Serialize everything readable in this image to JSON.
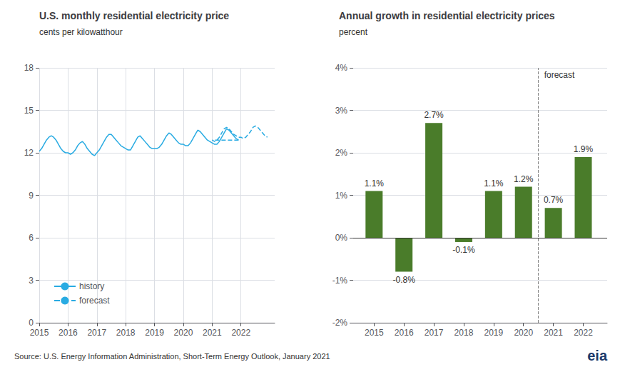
{
  "chart_data": [
    {
      "type": "line",
      "title": "U.S. monthly residential electricity price",
      "subtitle": "cents per kilowatthour",
      "xlim": [
        2015.0,
        2023.17
      ],
      "xticks": [
        2015,
        2016,
        2017,
        2018,
        2019,
        2020,
        2021,
        2022
      ],
      "ylim": [
        0,
        18
      ],
      "yticks": [
        0,
        3,
        6,
        9,
        12,
        15,
        18
      ],
      "grid": true,
      "legend": "lower left",
      "series": [
        {
          "name": "history",
          "color": "#29ABE2",
          "line_style": "solid",
          "x": [
            2015,
            2015.0833333333333,
            2015.1666666666667,
            2015.25,
            2015.3333333333333,
            2015.4166666666667,
            2015.5,
            2015.5833333333333,
            2015.6666666666667,
            2015.75,
            2015.8333333333333,
            2015.9166666666667,
            2016,
            2016.0833333333333,
            2016.1666666666667,
            2016.25,
            2016.3333333333333,
            2016.4166666666667,
            2016.5,
            2016.5833333333333,
            2016.6666666666667,
            2016.75,
            2016.8333333333333,
            2016.9166666666667,
            2017,
            2017.0833333333333,
            2017.1666666666667,
            2017.25,
            2017.3333333333333,
            2017.4166666666667,
            2017.5,
            2017.5833333333333,
            2017.6666666666667,
            2017.75,
            2017.8333333333333,
            2017.9166666666667,
            2018,
            2018.0833333333333,
            2018.1666666666667,
            2018.25,
            2018.3333333333333,
            2018.4166666666667,
            2018.5,
            2018.5833333333333,
            2018.6666666666667,
            2018.75,
            2018.8333333333333,
            2018.9166666666667,
            2019,
            2019.0833333333333,
            2019.1666666666667,
            2019.25,
            2019.3333333333333,
            2019.4166666666667,
            2019.5,
            2019.5833333333333,
            2019.6666666666667,
            2019.75,
            2019.8333333333333,
            2019.9166666666667,
            2020,
            2020.0833333333333,
            2020.1666666666667,
            2020.25,
            2020.3333333333333,
            2020.4166666666667,
            2020.5,
            2020.5833333333333,
            2020.6666666666667,
            2020.75,
            2020.8333333333333,
            2020.9166666666667,
            2021,
            2021.0833333333333,
            2021.1666666666667,
            2021.25,
            2021.3333333333333,
            2021.4166666666667,
            2021.5,
            2021.5833333333333,
            2021.6666666666667,
            2021.75,
            2021.8333333333333,
            2021.9166666666667
          ],
          "values": [
            12.1,
            12.3,
            12.6,
            12.9,
            13.1,
            13.2,
            13.1,
            12.9,
            12.6,
            12.3,
            12.1,
            12.0,
            12.0,
            11.9,
            12.0,
            12.2,
            12.5,
            12.7,
            12.8,
            12.6,
            12.3,
            12.1,
            11.9,
            11.8,
            12.0,
            12.2,
            12.5,
            12.8,
            13.1,
            13.3,
            13.3,
            13.1,
            12.9,
            12.7,
            12.5,
            12.4,
            12.3,
            12.2,
            12.2,
            12.5,
            12.8,
            13.1,
            13.2,
            13.0,
            12.8,
            12.6,
            12.4,
            12.3,
            12.3,
            12.3,
            12.4,
            12.6,
            12.9,
            13.2,
            13.4,
            13.3,
            13.1,
            12.9,
            12.7,
            12.6,
            12.6,
            12.5,
            12.5,
            12.7,
            13.0,
            13.3,
            13.6,
            13.5,
            13.3,
            13.1,
            12.9,
            12.8,
            12.7,
            12.6,
            12.6,
            12.8,
            13.1,
            13.4,
            13.7,
            13.6,
            13.4,
            13.2,
            13.0,
            12.9
          ]
        },
        {
          "name": "forecast",
          "color": "#29ABE2",
          "line_style": "dashed",
          "x": [
            2021.9166666666667,
            2021,
            2021.0833333333333,
            2021.1666666666667,
            2021.25,
            2021.3333333333333,
            2021.4166666666667,
            2021.5,
            2021.5833333333333,
            2021.6666666666667,
            2021.75,
            2021.8333333333333,
            2021.9166666666667,
            2022,
            2022.0833333333333,
            2022.1666666666667,
            2022.25,
            2022.3333333333333,
            2022.4166666666667,
            2022.5,
            2022.5833333333333,
            2022.6666666666667,
            2022.75,
            2022.8333333333333,
            2022.9166666666667
          ],
          "values": [
            12.9,
            12.9,
            12.8,
            12.9,
            13.1,
            13.4,
            13.7,
            13.8,
            13.7,
            13.5,
            13.3,
            13.2,
            13.1,
            13.1,
            13.0,
            13.1,
            13.3,
            13.5,
            13.8,
            13.9,
            13.8,
            13.6,
            13.4,
            13.2,
            13.1
          ]
        }
      ],
      "annotations": [
        "Source: U.S. Energy Information Administration, Short-Term Energy Outlook, January 2021",
        "eia"
      ]
    },
    {
      "type": "bar",
      "title": "Annual growth in residential electricity prices",
      "subtitle": "percent",
      "x": [
        2015,
        2016,
        2017,
        2018,
        2019,
        2020,
        2021,
        2022
      ],
      "values": [
        1.1,
        -0.8,
        2.7,
        -0.1,
        1.1,
        1.2,
        0.7,
        1.9
      ],
      "value_labels": [
        "1.1%",
        "-0.8%",
        "2.7%",
        "-0.1%",
        "1.1%",
        "1.2%",
        "0.7%",
        "1.9%"
      ],
      "data_labels": true,
      "color": "#4A7C2A",
      "xlim": [
        2014.3,
        2022.8
      ],
      "xticks": [
        2015,
        2016,
        2017,
        2018,
        2019,
        2020,
        2021,
        2022
      ],
      "ylim": [
        -2,
        4
      ],
      "yticks": [
        {
          "value": -2,
          "label": "-2%"
        },
        {
          "value": -1,
          "label": "-1%"
        },
        {
          "value": 0,
          "label": "0%"
        },
        {
          "value": 1,
          "label": "1%"
        },
        {
          "value": 2,
          "label": "2%"
        },
        {
          "value": 3,
          "label": "3%"
        },
        {
          "value": 4,
          "label": "4%"
        }
      ],
      "grid": "y",
      "annotations": [
        {
          "text": "forecast",
          "x": 2020.5
        }
      ]
    }
  ]
}
